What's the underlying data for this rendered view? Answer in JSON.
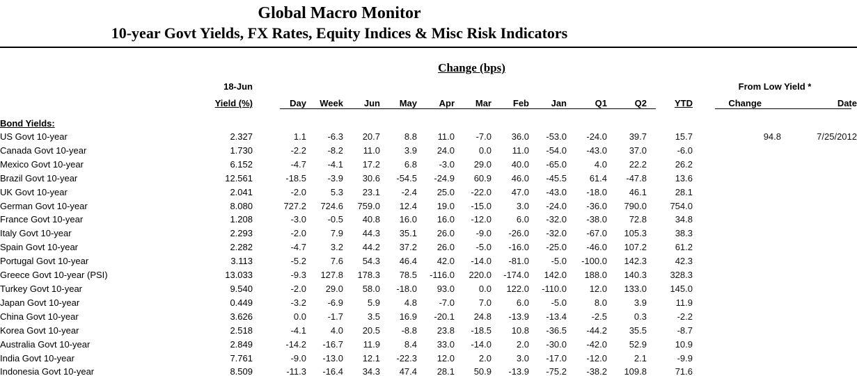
{
  "report": {
    "title": "Global Macro Monitor",
    "subtitle": "10-year Govt Yields, FX Rates, Equity Indices & Misc Risk Indicators"
  },
  "table": {
    "change_group_label": "Change (bps)",
    "asof_label": "18-Jun",
    "yield_header": "Yield (%)",
    "from_low_label": "From Low Yield *",
    "change_columns": [
      "Day",
      "Week",
      "Jun",
      "May",
      "Apr",
      "Mar",
      "Feb",
      "Jan",
      "Q1",
      "Q2",
      "YTD"
    ],
    "from_low_columns": [
      "Change",
      "Date"
    ],
    "section_label": "Bond Yields:",
    "rows": [
      {
        "label": "US Govt 10-year",
        "yield": "2.327",
        "changes": [
          "1.1",
          "-6.3",
          "20.7",
          "8.8",
          "11.0",
          "-7.0",
          "36.0",
          "-53.0",
          "-24.0",
          "39.7",
          "15.7"
        ],
        "from_low_change": "94.8",
        "from_low_date": "7/25/2012"
      },
      {
        "label": "Canada Govt 10-year",
        "yield": "1.730",
        "changes": [
          "-2.2",
          "-8.2",
          "11.0",
          "3.9",
          "24.0",
          "0.0",
          "11.0",
          "-54.0",
          "-43.0",
          "37.0",
          "-6.0"
        ],
        "from_low_change": "",
        "from_low_date": ""
      },
      {
        "label": "Mexico Govt 10-year",
        "yield": "6.152",
        "changes": [
          "-4.7",
          "-4.1",
          "17.2",
          "6.8",
          "-3.0",
          "29.0",
          "40.0",
          "-65.0",
          "4.0",
          "22.2",
          "26.2"
        ],
        "from_low_change": "",
        "from_low_date": ""
      },
      {
        "label": "Brazil Govt 10-year",
        "yield": "12.561",
        "changes": [
          "-18.5",
          "-3.9",
          "30.6",
          "-54.5",
          "-24.9",
          "60.9",
          "46.0",
          "-45.5",
          "61.4",
          "-47.8",
          "13.6"
        ],
        "from_low_change": "",
        "from_low_date": ""
      },
      {
        "label": "UK Govt 10-year",
        "yield": "2.041",
        "changes": [
          "-2.0",
          "5.3",
          "23.1",
          "-2.4",
          "25.0",
          "-22.0",
          "47.0",
          "-43.0",
          "-18.0",
          "46.1",
          "28.1"
        ],
        "from_low_change": "",
        "from_low_date": ""
      },
      {
        "label": "German Govt 10-year",
        "yield": "8.080",
        "changes": [
          "727.2",
          "724.6",
          "759.0",
          "12.4",
          "19.0",
          "-15.0",
          "3.0",
          "-24.0",
          "-36.0",
          "790.0",
          "754.0"
        ],
        "from_low_change": "",
        "from_low_date": ""
      },
      {
        "label": "France Govt 10-year",
        "yield": "1.208",
        "changes": [
          "-3.0",
          "-0.5",
          "40.8",
          "16.0",
          "16.0",
          "-12.0",
          "6.0",
          "-32.0",
          "-38.0",
          "72.8",
          "34.8"
        ],
        "from_low_change": "",
        "from_low_date": ""
      },
      {
        "label": "Italy Govt 10-year",
        "yield": "2.293",
        "changes": [
          "-2.0",
          "7.9",
          "44.3",
          "35.1",
          "26.0",
          "-9.0",
          "-26.0",
          "-32.0",
          "-67.0",
          "105.3",
          "38.3"
        ],
        "from_low_change": "",
        "from_low_date": ""
      },
      {
        "label": "Spain Govt 10-year",
        "yield": "2.282",
        "changes": [
          "-4.7",
          "3.2",
          "44.2",
          "37.2",
          "26.0",
          "-5.0",
          "-16.0",
          "-25.0",
          "-46.0",
          "107.2",
          "61.2"
        ],
        "from_low_change": "",
        "from_low_date": ""
      },
      {
        "label": "Portugal Govt 10-year",
        "yield": "3.113",
        "changes": [
          "-5.2",
          "7.6",
          "54.3",
          "46.4",
          "42.0",
          "-14.0",
          "-81.0",
          "-5.0",
          "-100.0",
          "142.3",
          "42.3"
        ],
        "from_low_change": "",
        "from_low_date": ""
      },
      {
        "label": "Greece Govt 10-year (PSI)",
        "yield": "13.033",
        "changes": [
          "-9.3",
          "127.8",
          "178.3",
          "78.5",
          "-116.0",
          "220.0",
          "-174.0",
          "142.0",
          "188.0",
          "140.3",
          "328.3"
        ],
        "from_low_change": "",
        "from_low_date": ""
      },
      {
        "label": "Turkey Govt 10-year",
        "yield": "9.540",
        "changes": [
          "-2.0",
          "29.0",
          "58.0",
          "-18.0",
          "93.0",
          "0.0",
          "122.0",
          "-110.0",
          "12.0",
          "133.0",
          "145.0"
        ],
        "from_low_change": "",
        "from_low_date": ""
      },
      {
        "label": "Japan Govt 10-year",
        "yield": "0.449",
        "changes": [
          "-3.2",
          "-6.9",
          "5.9",
          "4.8",
          "-7.0",
          "7.0",
          "6.0",
          "-5.0",
          "8.0",
          "3.9",
          "11.9"
        ],
        "from_low_change": "",
        "from_low_date": ""
      },
      {
        "label": "China Govt 10-year",
        "yield": "3.626",
        "changes": [
          "0.0",
          "-1.7",
          "3.5",
          "16.9",
          "-20.1",
          "24.8",
          "-13.9",
          "-13.4",
          "-2.5",
          "0.3",
          "-2.2"
        ],
        "from_low_change": "",
        "from_low_date": ""
      },
      {
        "label": "Korea Govt 10-year",
        "yield": "2.518",
        "changes": [
          "-4.1",
          "4.0",
          "20.5",
          "-8.8",
          "23.8",
          "-18.5",
          "10.8",
          "-36.5",
          "-44.2",
          "35.5",
          "-8.7"
        ],
        "from_low_change": "",
        "from_low_date": ""
      },
      {
        "label": "Australia Govt 10-year",
        "yield": "2.849",
        "changes": [
          "-14.2",
          "-16.7",
          "11.9",
          "8.4",
          "33.0",
          "-14.0",
          "2.0",
          "-30.0",
          "-42.0",
          "52.9",
          "10.9"
        ],
        "from_low_change": "",
        "from_low_date": ""
      },
      {
        "label": "India Govt 10-year",
        "yield": "7.761",
        "changes": [
          "-9.0",
          "-13.0",
          "12.1",
          "-22.3",
          "12.0",
          "2.0",
          "3.0",
          "-17.0",
          "-12.0",
          "2.1",
          "-9.9"
        ],
        "from_low_change": "",
        "from_low_date": ""
      },
      {
        "label": "Indonesia Govt 10-year",
        "yield": "8.509",
        "changes": [
          "-11.3",
          "-16.4",
          "34.3",
          "47.4",
          "28.1",
          "50.9",
          "-13.9",
          "-75.2",
          "-38.2",
          "109.8",
          "71.6"
        ],
        "from_low_change": "",
        "from_low_date": ""
      }
    ]
  },
  "colors": {
    "background": "#ffffff",
    "text": "#000000",
    "rule": "#000000"
  }
}
